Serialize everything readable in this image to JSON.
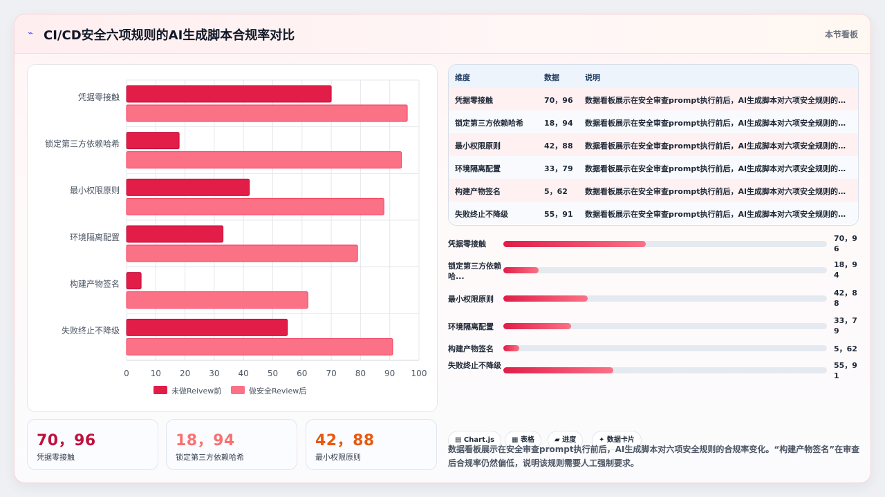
{
  "header": {
    "title": "CI/CD安全六项规则的AI生成脚本合规率对比",
    "tag": "本节看板",
    "icon": "zigzag-icon"
  },
  "chart_data": {
    "type": "bar",
    "orientation": "horizontal",
    "categories": [
      "凭据零接触",
      "锁定第三方依赖哈希",
      "最小权限原则",
      "环境隔离配置",
      "构建产物签名",
      "失败终止不降级"
    ],
    "series": [
      {
        "name": "未做Reivew前",
        "values": [
          70,
          18,
          42,
          33,
          5,
          55
        ],
        "color": "#e11d48"
      },
      {
        "name": "做安全Review后",
        "values": [
          96,
          94,
          88,
          79,
          62,
          91
        ],
        "color": "#fb7185"
      }
    ],
    "xlim": [
      0,
      100
    ],
    "xticks": [
      "0",
      "10",
      "20",
      "30",
      "40",
      "50",
      "60",
      "70",
      "80",
      "90",
      "100"
    ],
    "grid": true,
    "legend": "bottom"
  },
  "stats": [
    {
      "value": "70，96",
      "label": "凭据零接触",
      "color": "#be123c"
    },
    {
      "value": "18，94",
      "label": "锁定第三方依赖哈希",
      "color": "#f87171"
    },
    {
      "value": "42，88",
      "label": "最小权限原则",
      "color": "#ea580c"
    }
  ],
  "table": {
    "headers": [
      "维度",
      "数据",
      "说明"
    ],
    "rows": [
      {
        "dim": "凭据零接触",
        "data": "70，96",
        "note": "数据看板展示在安全审查prompt执行前后，AI生成脚本对六项安全规则的合规率变化。"
      },
      {
        "dim": "锁定第三方依赖哈希",
        "data": "18，94",
        "note": "数据看板展示在安全审查prompt执行前后，AI生成脚本对六项安全规则的合规率变化。"
      },
      {
        "dim": "最小权限原则",
        "data": "42，88",
        "note": "数据看板展示在安全审查prompt执行前后，AI生成脚本对六项安全规则的合规率变化。"
      },
      {
        "dim": "环境隔离配置",
        "data": "33，79",
        "note": "数据看板展示在安全审查prompt执行前后，AI生成脚本对六项安全规则的合规率变化。"
      },
      {
        "dim": "构建产物签名",
        "data": "5，62",
        "note": "数据看板展示在安全审查prompt执行前后，AI生成脚本对六项安全规则的合规率变化。"
      },
      {
        "dim": "失败终止不降级",
        "data": "55，91",
        "note": "数据看板展示在安全审查prompt执行前后，AI生成脚本对六项安全规则的合规率变化。"
      }
    ]
  },
  "progress": [
    {
      "label": "凭据零接触",
      "value": "70，96",
      "fraction": 0.44
    },
    {
      "label": "锁定第三方依赖哈...",
      "value": "18，94",
      "fraction": 0.11
    },
    {
      "label": "最小权限原则",
      "value": "42，88",
      "fraction": 0.26
    },
    {
      "label": "环境隔离配置",
      "value": "33，79",
      "fraction": 0.21
    },
    {
      "label": "构建产物签名",
      "value": "5，62",
      "fraction": 0.05
    },
    {
      "label": "失败终止不降级",
      "value": "55，91",
      "fraction": 0.34
    }
  ],
  "chips": [
    {
      "label": "▤ Chart.js"
    },
    {
      "label": "▦ 表格"
    },
    {
      "label": "▰ 进度"
    },
    {
      "label": "✦ 数据卡片"
    }
  ],
  "description": "数据看板展示在安全审查prompt执行前后，AI生成脚本对六项安全规则的合规率变化。“构建产物签名”在审查后合规率仍然偏低，说明该规则需要人工强制要求。"
}
